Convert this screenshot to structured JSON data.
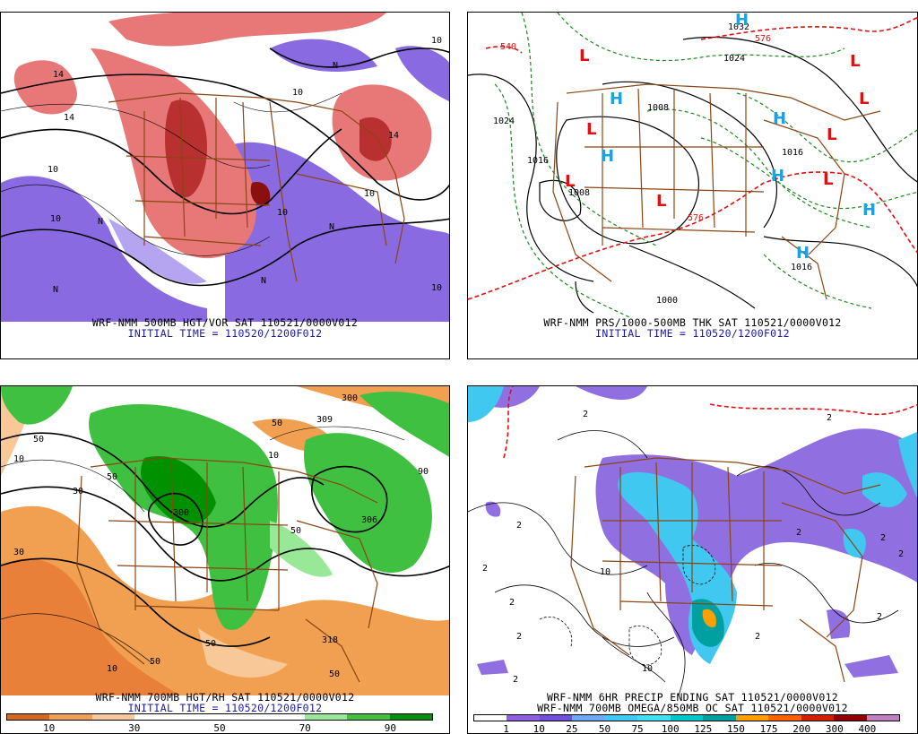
{
  "panels": [
    {
      "id": "500mb",
      "caption_line1": "WRF-NMM 500MB HGT/VOR SAT 110521/0000V012",
      "caption_line2": "INITIAL TIME = 110520/1200F012",
      "contour_labels": [
        "14",
        "14",
        "10",
        "10",
        "10",
        "10",
        "14",
        "10",
        "10",
        "10",
        "N",
        "N",
        "N",
        "N",
        "N"
      ]
    },
    {
      "id": "sfc",
      "caption_line1": "WRF-NMM PRS/1000-500MB THK SAT 110521/0000V012",
      "caption_line2": "INITIAL TIME = 110520/1200F012",
      "pressure_labels": [
        "1024",
        "1016",
        "1008",
        "1008",
        "1016",
        "1016",
        "1024",
        "1032",
        "1000",
        "576",
        "540",
        "576"
      ],
      "highs": [
        "H",
        "H",
        "H",
        "H",
        "H",
        "H",
        "H"
      ],
      "lows": [
        "L",
        "L",
        "L",
        "L",
        "L",
        "L",
        "L",
        "L"
      ]
    },
    {
      "id": "700mb",
      "caption_line1": "WRF-NMM 700MB HGT/RH SAT 110521/0000V012",
      "caption_line2": "INITIAL TIME = 110520/1200F012",
      "contour_labels": [
        "300",
        "309",
        "50",
        "10",
        "50",
        "30",
        "50",
        "30",
        "90",
        "306",
        "300",
        "50",
        "318",
        "50",
        "10",
        "50",
        "10",
        "50"
      ],
      "colorbar": {
        "labels": [
          "10",
          "30",
          "50",
          "70",
          "90"
        ],
        "colors": [
          "#d2691e",
          "#f0a050",
          "#f8c898",
          "#ffffff",
          "#ffffff",
          "#ffffff",
          "#ffffff",
          "#98e898",
          "#40c040",
          "#009000"
        ]
      }
    },
    {
      "id": "precip",
      "caption_line1": "WRF-NMM 6HR PRECIP ENDING SAT 110521/0000V012",
      "caption_line2": "WRF-NMM 700MB OMEGA/850MB OC SAT 110521/0000V012",
      "contour_labels": [
        "2",
        "2",
        "2",
        "2",
        "2",
        "2",
        "10",
        "2",
        "2",
        "2",
        "10",
        "2",
        "2",
        "2"
      ],
      "colorbar": {
        "labels": [
          "1",
          "10",
          "25",
          "50",
          "75",
          "100",
          "125",
          "150",
          "175",
          "200",
          "300",
          "400"
        ],
        "colors": [
          "#ffffff",
          "#9060e0",
          "#7050d8",
          "#70a8f0",
          "#40c8f0",
          "#40e0f0",
          "#00c8c8",
          "#00a0a0",
          "#ffa000",
          "#ff6000",
          "#d02000",
          "#900000",
          "#c080c0"
        ]
      }
    }
  ]
}
